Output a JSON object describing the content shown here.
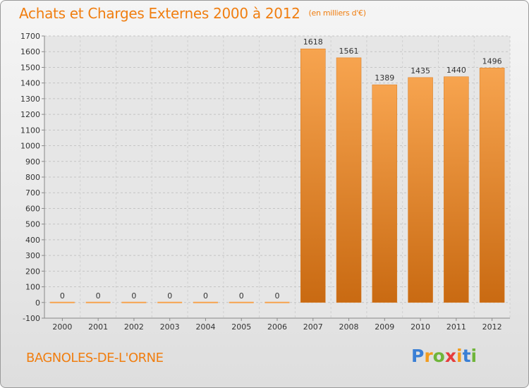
{
  "chart_data": {
    "type": "bar",
    "title": "Achats et Charges Externes 2000 à 2012",
    "unit": "(en milliers d'€)",
    "categories": [
      "2000",
      "2001",
      "2002",
      "2003",
      "2004",
      "2005",
      "2006",
      "2007",
      "2008",
      "2009",
      "2010",
      "2011",
      "2012"
    ],
    "values": [
      0,
      0,
      0,
      0,
      0,
      0,
      0,
      1618,
      1561,
      1389,
      1435,
      1440,
      1496
    ],
    "ylim": [
      -100,
      1700
    ],
    "yticks": [
      -100,
      0,
      100,
      200,
      300,
      400,
      500,
      600,
      700,
      800,
      900,
      1000,
      1100,
      1200,
      1300,
      1400,
      1500,
      1600,
      1700
    ],
    "grid": "horizontal-dashed",
    "bar_color": "#f0862a",
    "bar_color_light": "#f7a44f"
  },
  "location": "BAGNOLES-DE-L'ORNE",
  "brand": {
    "letters": [
      "P",
      "r",
      "o",
      "x",
      "i",
      "t",
      "i"
    ]
  }
}
